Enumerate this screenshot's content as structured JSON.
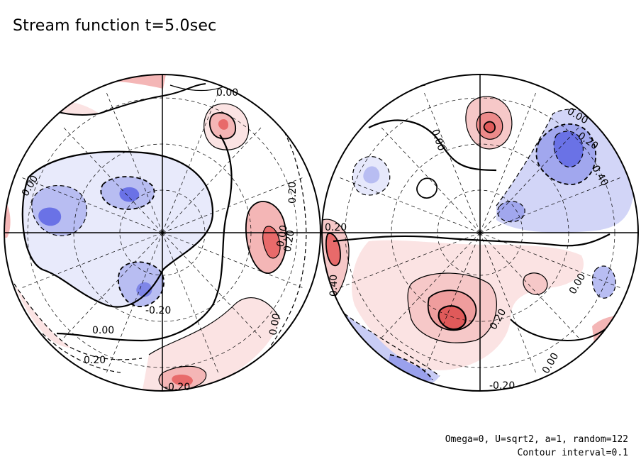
{
  "title": "Stream function t=5.0sec",
  "footer": {
    "params": "Omega=0, U=sqrt2, a=1, random=122",
    "interval": "Contour interval=0.1"
  },
  "colors": {
    "positive_light": "#fbe3e3",
    "positive_mid": "#f4b6b6",
    "positive_strong": "#e86a6a",
    "negative_light": "#e6e8fb",
    "negative_mid": "#b7bdf2",
    "negative_strong": "#6a72e6"
  },
  "labels": {
    "left": [
      "0.00",
      "0.00",
      "0.00",
      "0.20",
      "0.20",
      "-0.20",
      "0.00",
      "-0.20",
      "0.00",
      "0.20"
    ],
    "right": [
      "0.20",
      "0.00",
      "0.00",
      "0.20",
      "0.40",
      "0.00",
      "0.20",
      "0.00",
      "-0.20",
      "0.40"
    ]
  }
}
